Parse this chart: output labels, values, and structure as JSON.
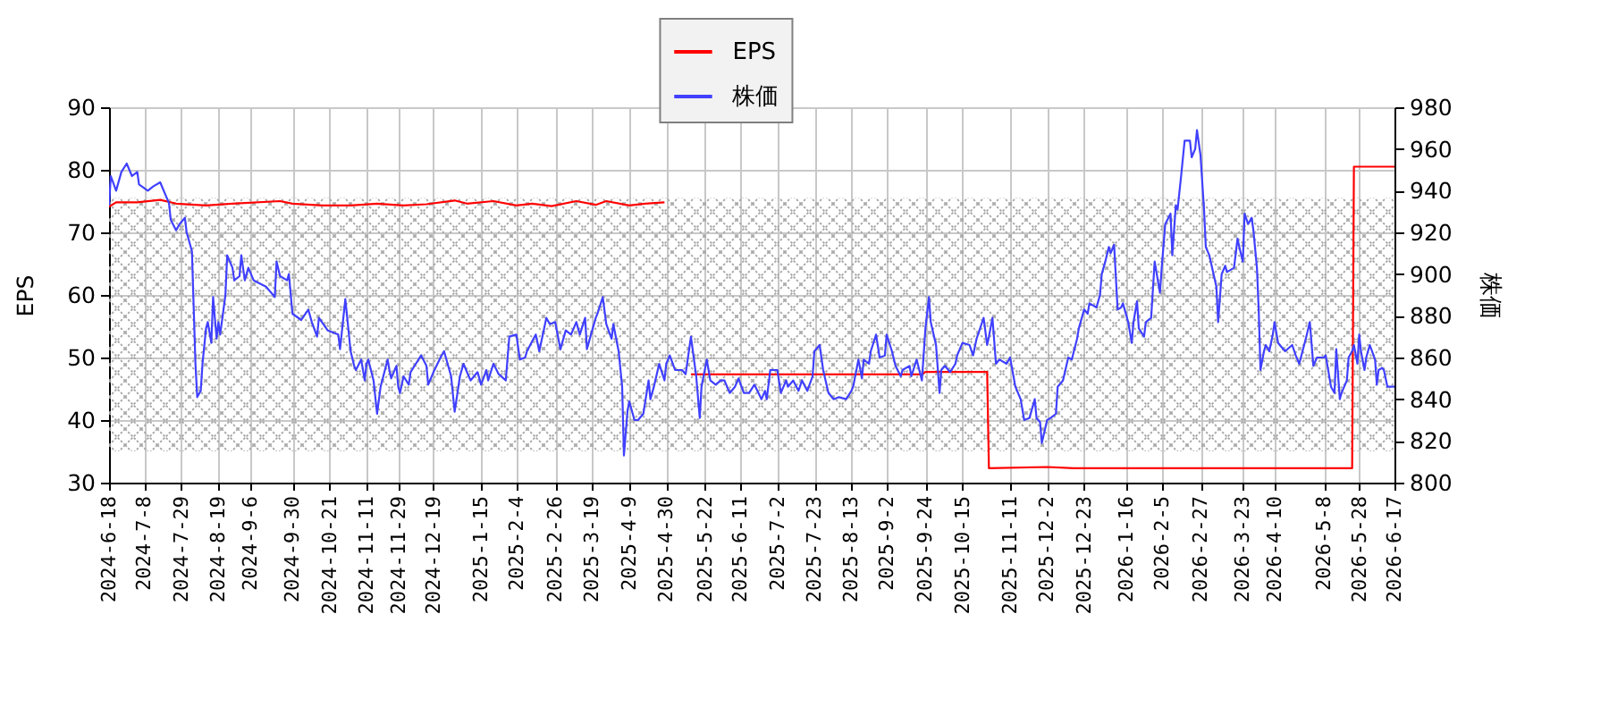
{
  "chart_data": {
    "type": "line",
    "ylabel": "EPS",
    "y2label": "株価",
    "xlim": [
      "2024-06-18",
      "2026-06-17"
    ],
    "xticks": [
      {
        "value": "2024-06-18",
        "label": "2024-6-18"
      },
      {
        "value": "2024-07-08",
        "label": "2024-7-8"
      },
      {
        "value": "2024-07-29",
        "label": "2024-7-29"
      },
      {
        "value": "2024-08-19",
        "label": "2024-8-19"
      },
      {
        "value": "2024-09-06",
        "label": "2024-9-6"
      },
      {
        "value": "2024-09-30",
        "label": "2024-9-30"
      },
      {
        "value": "2024-10-21",
        "label": "2024-10-21"
      },
      {
        "value": "2024-11-11",
        "label": "2024-11-11"
      },
      {
        "value": "2024-11-29",
        "label": "2024-11-29"
      },
      {
        "value": "2024-12-19",
        "label": "2024-12-19"
      },
      {
        "value": "2025-01-15",
        "label": "2025-1-15"
      },
      {
        "value": "2025-02-04",
        "label": "2025-2-4"
      },
      {
        "value": "2025-02-26",
        "label": "2025-2-26"
      },
      {
        "value": "2025-03-19",
        "label": "2025-3-19"
      },
      {
        "value": "2025-04-09",
        "label": "2025-4-9"
      },
      {
        "value": "2025-04-30",
        "label": "2025-4-30"
      },
      {
        "value": "2025-05-22",
        "label": "2025-5-22"
      },
      {
        "value": "2025-06-11",
        "label": "2025-6-11"
      },
      {
        "value": "2025-07-02",
        "label": "2025-7-2"
      },
      {
        "value": "2025-07-23",
        "label": "2025-7-23"
      },
      {
        "value": "2025-08-13",
        "label": "2025-8-13"
      },
      {
        "value": "2025-09-02",
        "label": "2025-9-2"
      },
      {
        "value": "2025-09-24",
        "label": "2025-9-24"
      },
      {
        "value": "2025-10-15",
        "label": "2025-10-15"
      },
      {
        "value": "2025-11-11",
        "label": "2025-11-11"
      },
      {
        "value": "2025-12-02",
        "label": "2025-12-2"
      },
      {
        "value": "2025-12-23",
        "label": "2025-12-23"
      },
      {
        "value": "2026-01-16",
        "label": "2026-1-16"
      },
      {
        "value": "2026-02-05",
        "label": "2026-2-5"
      },
      {
        "value": "2026-02-27",
        "label": "2026-2-27"
      },
      {
        "value": "2026-03-23",
        "label": "2026-3-23"
      },
      {
        "value": "2026-04-10",
        "label": "2026-4-10"
      },
      {
        "value": "2026-05-08",
        "label": "2026-5-8"
      },
      {
        "value": "2026-05-28",
        "label": "2026-5-28"
      },
      {
        "value": "2026-06-17",
        "label": "2026-6-17"
      }
    ],
    "ylim": [
      30,
      90
    ],
    "yticks": [
      30,
      40,
      50,
      60,
      70,
      80,
      90
    ],
    "y2lim": [
      800,
      980
    ],
    "y2ticks": [
      800,
      820,
      840,
      860,
      880,
      900,
      920,
      940,
      960,
      980
    ],
    "grid": true,
    "legend": "top",
    "bands": [
      {
        "axis": "y",
        "from": 35,
        "to": 75.5,
        "color": "#a8a8a8"
      }
    ],
    "series": [
      {
        "name": "EPS",
        "color": "#ff0000",
        "x": [
          "2024-06-18",
          "2024-06-22",
          "2024-07-04",
          "2024-07-17",
          "2024-07-26",
          "2024-08-12",
          "2024-08-27",
          "2024-09-23",
          "2024-09-30",
          "2024-10-17",
          "2024-11-02",
          "2024-11-17",
          "2024-12-02",
          "2024-12-15",
          "2024-12-31",
          "2025-01-07",
          "2025-01-22",
          "2025-02-04",
          "2025-02-13",
          "2025-02-24",
          "2025-03-10",
          "2025-03-21",
          "2025-03-27",
          "2025-04-09",
          "2025-04-18",
          "2025-04-29",
          "2025-05-06",
          "2025-05-14",
          "2025-09-22",
          "2025-09-24",
          "2025-10-29",
          "2025-10-30",
          "2025-12-02",
          "2025-12-17",
          "2026-05-24",
          "2026-05-25",
          "2026-06-17"
        ],
        "values": [
          74.1,
          74.8,
          74.8,
          75.2,
          74.6,
          74.3,
          74.6,
          75.0,
          74.6,
          74.3,
          74.3,
          74.6,
          74.3,
          74.5,
          75.1,
          74.6,
          75.0,
          74.3,
          74.6,
          74.2,
          75.0,
          74.4,
          75.0,
          74.3,
          74.6,
          74.8,
          null,
          47.3,
          47.3,
          47.7,
          47.7,
          32.3,
          32.5,
          32.3,
          32.3,
          80.5,
          80.5
        ]
      },
      {
        "name": "株価",
        "color": "#4040ff",
        "axis": "y2",
        "x": [
          "2024-06-18",
          "2024-06-19",
          "2024-06-22",
          "2024-06-25",
          "2024-06-28",
          "2024-07-01",
          "2024-07-04",
          "2024-07-05",
          "2024-07-10",
          "2024-07-13",
          "2024-07-17",
          "2024-07-22",
          "2024-07-23",
          "2024-07-26",
          "2024-07-28",
          "2024-07-31",
          "2024-08-01",
          "2024-08-04",
          "2024-08-06",
          "2024-08-07",
          "2024-08-09",
          "2024-08-10",
          "2024-08-12",
          "2024-08-13",
          "2024-08-15",
          "2024-08-16",
          "2024-08-18",
          "2024-08-19",
          "2024-08-20",
          "2024-08-23",
          "2024-08-24",
          "2024-08-27",
          "2024-08-28",
          "2024-08-31",
          "2024-09-01",
          "2024-09-03",
          "2024-09-05",
          "2024-09-08",
          "2024-09-15",
          "2024-09-20",
          "2024-09-21",
          "2024-09-23",
          "2024-09-27",
          "2024-09-28",
          "2024-09-30",
          "2024-10-05",
          "2024-10-09",
          "2024-10-11",
          "2024-10-14",
          "2024-10-15",
          "2024-10-20",
          "2024-10-26",
          "2024-10-27",
          "2024-10-30",
          "2024-11-02",
          "2024-11-04",
          "2024-11-05",
          "2024-11-08",
          "2024-11-10",
          "2024-11-11",
          "2024-11-12",
          "2024-11-15",
          "2024-11-17",
          "2024-11-19",
          "2024-11-23",
          "2024-11-24",
          "2024-11-25",
          "2024-11-28",
          "2024-11-29",
          "2024-11-30",
          "2024-12-02",
          "2024-12-05",
          "2024-12-06",
          "2024-12-09",
          "2024-12-12",
          "2024-12-15",
          "2024-12-16",
          "2024-12-19",
          "2024-12-23",
          "2024-12-25",
          "2024-12-29",
          "2024-12-31",
          "2025-01-03",
          "2025-01-05",
          "2025-01-09",
          "2025-01-13",
          "2025-01-15",
          "2025-01-18",
          "2025-01-19",
          "2025-01-22",
          "2025-01-25",
          "2025-01-29",
          "2025-01-31",
          "2025-02-04",
          "2025-02-06",
          "2025-02-09",
          "2025-02-10",
          "2025-02-15",
          "2025-02-17",
          "2025-02-21",
          "2025-02-23",
          "2025-02-26",
          "2025-03-01",
          "2025-03-04",
          "2025-03-07",
          "2025-03-10",
          "2025-03-12",
          "2025-03-15",
          "2025-03-16",
          "2025-03-21",
          "2025-03-22",
          "2025-03-25",
          "2025-03-27",
          "2025-03-30",
          "2025-03-31",
          "2025-04-03",
          "2025-04-05",
          "2025-04-06",
          "2025-04-08",
          "2025-04-09",
          "2025-04-12",
          "2025-04-14",
          "2025-04-17",
          "2025-04-20",
          "2025-04-21",
          "2025-04-23",
          "2025-04-26",
          "2025-04-29",
          "2025-04-30",
          "2025-05-02",
          "2025-05-05",
          "2025-05-09",
          "2025-05-11",
          "2025-05-14",
          "2025-05-17",
          "2025-05-19",
          "2025-05-20",
          "2025-05-23",
          "2025-05-25",
          "2025-05-28",
          "2025-05-31",
          "2025-06-02",
          "2025-06-05",
          "2025-06-08",
          "2025-06-10",
          "2025-06-13",
          "2025-06-16",
          "2025-06-19",
          "2025-06-23",
          "2025-06-25",
          "2025-06-26",
          "2025-06-28",
          "2025-07-02",
          "2025-07-04",
          "2025-07-07",
          "2025-07-08",
          "2025-07-11",
          "2025-07-14",
          "2025-07-16",
          "2025-07-19",
          "2025-07-22",
          "2025-07-23",
          "2025-07-26",
          "2025-07-28",
          "2025-07-31",
          "2025-08-03",
          "2025-08-06",
          "2025-08-10",
          "2025-08-13",
          "2025-08-14",
          "2025-08-17",
          "2025-08-19",
          "2025-08-20",
          "2025-08-23",
          "2025-08-24",
          "2025-08-27",
          "2025-08-29",
          "2025-09-01",
          "2025-09-02",
          "2025-09-05",
          "2025-09-07",
          "2025-09-10",
          "2025-09-11",
          "2025-09-15",
          "2025-09-16",
          "2025-09-19",
          "2025-09-22",
          "2025-09-24",
          "2025-09-26",
          "2025-09-27",
          "2025-09-30",
          "2025-10-02",
          "2025-10-03",
          "2025-10-05",
          "2025-10-08",
          "2025-10-11",
          "2025-10-12",
          "2025-10-15",
          "2025-10-19",
          "2025-10-21",
          "2025-10-23",
          "2025-10-27",
          "2025-10-29",
          "2025-10-30",
          "2025-11-01",
          "2025-11-03",
          "2025-11-05",
          "2025-11-09",
          "2025-11-11",
          "2025-11-14",
          "2025-11-17",
          "2025-11-19",
          "2025-11-22",
          "2025-11-25",
          "2025-11-26",
          "2025-11-28",
          "2025-11-29",
          "2025-12-02",
          "2025-12-04",
          "2025-12-07",
          "2025-12-08",
          "2025-12-11",
          "2025-12-14",
          "2025-12-16",
          "2025-12-19",
          "2025-12-20",
          "2025-12-23",
          "2025-12-25",
          "2025-12-26",
          "2025-12-30",
          "2026-01-01",
          "2026-01-02",
          "2026-01-04",
          "2026-01-06",
          "2026-01-07",
          "2026-01-09",
          "2026-01-11",
          "2026-01-13",
          "2026-01-14",
          "2026-01-17",
          "2026-01-19",
          "2026-01-20",
          "2026-01-22",
          "2026-01-23",
          "2026-01-26",
          "2026-01-27",
          "2026-01-30",
          "2026-02-01",
          "2026-02-04",
          "2026-02-05",
          "2026-02-07",
          "2026-02-10",
          "2026-02-11",
          "2026-02-13",
          "2026-02-14",
          "2026-02-16",
          "2026-02-18",
          "2026-02-21",
          "2026-02-22",
          "2026-02-24",
          "2026-02-25",
          "2026-02-27",
          "2026-03-01",
          "2026-03-02",
          "2026-03-04",
          "2026-03-08",
          "2026-03-09",
          "2026-03-11",
          "2026-03-13",
          "2026-03-14",
          "2026-03-18",
          "2026-03-20",
          "2026-03-21",
          "2026-03-23",
          "2026-03-24",
          "2026-03-26",
          "2026-03-28",
          "2026-03-29",
          "2026-03-31",
          "2026-04-01",
          "2026-04-02",
          "2026-04-04",
          "2026-04-05",
          "2026-04-07",
          "2026-04-09",
          "2026-04-10",
          "2026-04-12",
          "2026-04-16",
          "2026-04-20",
          "2026-04-22",
          "2026-04-24",
          "2026-04-28",
          "2026-04-30",
          "2026-05-02",
          "2026-05-04",
          "2026-05-08",
          "2026-05-09",
          "2026-05-12",
          "2026-05-14",
          "2026-05-15",
          "2026-05-17",
          "2026-05-18",
          "2026-05-21",
          "2026-05-22",
          "2026-05-24",
          "2026-05-25",
          "2026-05-27",
          "2026-05-28",
          "2026-05-29",
          "2026-05-31",
          "2026-06-01",
          "2026-06-03",
          "2026-06-06",
          "2026-06-07",
          "2026-06-08",
          "2026-06-10",
          "2026-06-11",
          "2026-06-13",
          "2026-06-16",
          "2026-06-17"
        ],
        "values": [
          933,
          947,
          940,
          949,
          953,
          947,
          949,
          943,
          940,
          942,
          944,
          934,
          926,
          921,
          924,
          927,
          920,
          911,
          857,
          841,
          844,
          857,
          874,
          877,
          867,
          889,
          869,
          877,
          871,
          890,
          909,
          903,
          897,
          899,
          909,
          897,
          903,
          897,
          894,
          889,
          906,
          899,
          897,
          900,
          881,
          878,
          883,
          877,
          870,
          879,
          873,
          871,
          864,
          888,
          863,
          856,
          854,
          859,
          849,
          857,
          859,
          849,
          833,
          846,
          859,
          854,
          850,
          856,
          846,
          843,
          851,
          847,
          853,
          857,
          861,
          856,
          847,
          853,
          860,
          863,
          851,
          834,
          851,
          857,
          849,
          853,
          847,
          854,
          849,
          857,
          852,
          849,
          870,
          871,
          859,
          860,
          863,
          871,
          863,
          879,
          876,
          877,
          864,
          873,
          871,
          877,
          871,
          879,
          864,
          879,
          881,
          889,
          876,
          869,
          876,
          863,
          846,
          813,
          834,
          839,
          830,
          830,
          833,
          849,
          840,
          846,
          857,
          849,
          857,
          861,
          854,
          854,
          852,
          870,
          851,
          831,
          846,
          859,
          849,
          847,
          849,
          849,
          843,
          846,
          850,
          843,
          843,
          847,
          840,
          844,
          840,
          854,
          854,
          843,
          849,
          846,
          849,
          844,
          849,
          844,
          851,
          863,
          866,
          854,
          843,
          840,
          841,
          840,
          844,
          846,
          859,
          850,
          859,
          857,
          863,
          871,
          860,
          861,
          871,
          863,
          856,
          851,
          854,
          856,
          851,
          859,
          849,
          874,
          889,
          877,
          866,
          843,
          854,
          856,
          853,
          857,
          861,
          867,
          866,
          861,
          869,
          879,
          866,
          870,
          879,
          857,
          859,
          857,
          860,
          846,
          840,
          830,
          831,
          840,
          831,
          829,
          819,
          830,
          831,
          833,
          846,
          849,
          860,
          859,
          869,
          874,
          883,
          881,
          886,
          884,
          890,
          900,
          906,
          913,
          910,
          914,
          883,
          884,
          886,
          877,
          867,
          877,
          887,
          874,
          870,
          877,
          879,
          906,
          891,
          903,
          924,
          929,
          909,
          933,
          931,
          947,
          964,
          964,
          956,
          960,
          969,
          957,
          931,
          913,
          909,
          894,
          877,
          900,
          904,
          901,
          903,
          917,
          913,
          906,
          929,
          924,
          927,
          921,
          903,
          883,
          854,
          863,
          866,
          863,
          871,
          877,
          867,
          863,
          866,
          861,
          857,
          870,
          877,
          856,
          860,
          860,
          861,
          846,
          843,
          864,
          840,
          843,
          849,
          860,
          863,
          866,
          857,
          871,
          863,
          854,
          860,
          866,
          859,
          847,
          854,
          855,
          854,
          846,
          846,
          846
        ]
      }
    ]
  }
}
